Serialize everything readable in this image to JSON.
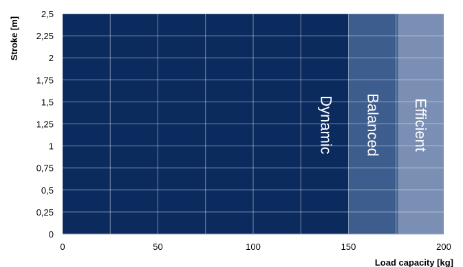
{
  "chart_data": {
    "type": "area",
    "title": "",
    "xlabel": "Load capacity [kg]",
    "ylabel": "Stroke [m]",
    "xlim": [
      0,
      200
    ],
    "ylim": [
      0,
      2.5
    ],
    "x_ticks": [
      0,
      50,
      100,
      150,
      200
    ],
    "x_tick_labels": [
      "0",
      "50",
      "100",
      "150",
      "200"
    ],
    "y_ticks": [
      0,
      0.25,
      0.5,
      0.75,
      1,
      1.25,
      1.5,
      1.75,
      2,
      2.25,
      2.5
    ],
    "y_tick_labels": [
      "0",
      "0,25",
      "0,5",
      "0,75",
      "1",
      "1,25",
      "1,5",
      "1,75",
      "2",
      "2,25",
      "2,5"
    ],
    "x_minor_gridlines": [
      25,
      75,
      125,
      175
    ],
    "grid": true,
    "zones": [
      {
        "name": "Dynamic",
        "x_start": 0,
        "x_end": 150,
        "y_max": 2.5,
        "color": "#0b2b5e"
      },
      {
        "name": "Balanced",
        "x_start": 150,
        "x_end": 176,
        "y_max": 2.5,
        "color": "#3d5d8e"
      },
      {
        "name": "Efficient",
        "x_start": 176,
        "x_end": 200,
        "y_max": 2.5,
        "color": "#7a8fb3"
      }
    ]
  }
}
